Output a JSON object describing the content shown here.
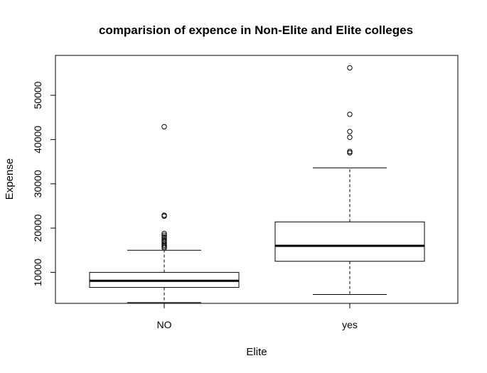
{
  "chart_data": {
    "type": "box",
    "title": "comparision of expence in Non-Elite and Elite colleges",
    "xlabel": "Elite",
    "ylabel": "Expense",
    "categories": [
      "NO",
      "yes"
    ],
    "y_ticks": [
      10000,
      20000,
      30000,
      40000,
      50000
    ],
    "ylim": [
      3000,
      59000
    ],
    "grid": false,
    "boxes": [
      {
        "name": "NO",
        "whisker_low": 3186,
        "q1": 6600,
        "median": 8100,
        "q3": 10000,
        "whisker_high": 15000,
        "outliers": [
          15500,
          15800,
          16100,
          16500,
          16900,
          17200,
          17600,
          18000,
          18400,
          18800,
          22700,
          22900,
          42900
        ]
      },
      {
        "name": "yes",
        "whisker_low": 5000,
        "q1": 12500,
        "median": 16000,
        "q3": 21400,
        "whisker_high": 33600,
        "outliers": [
          37000,
          37300,
          40500,
          41800,
          45700,
          56200
        ]
      }
    ]
  }
}
